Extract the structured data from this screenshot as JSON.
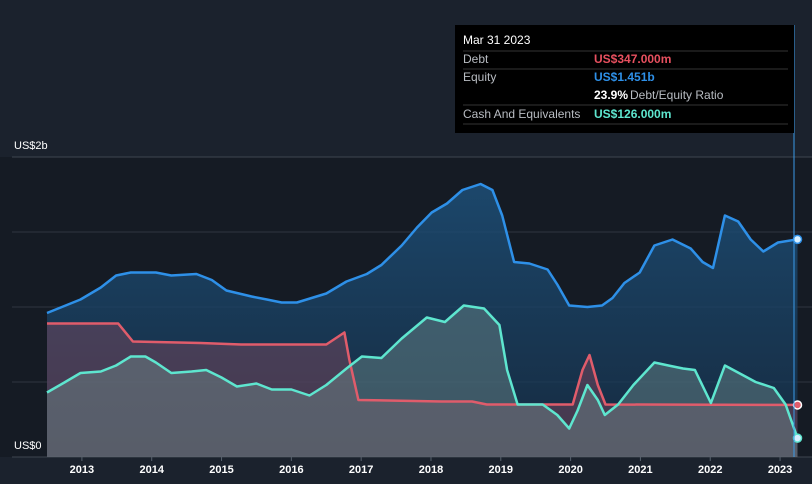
{
  "chart_data": {
    "type": "area",
    "xlim": [
      2012.5,
      2023.3
    ],
    "xticks": [
      2013,
      2014,
      2015,
      2016,
      2017,
      2018,
      2019,
      2020,
      2021,
      2022,
      2023
    ],
    "ylim": [
      0,
      2
    ],
    "yticks": [
      {
        "value": 0,
        "label": "US$0"
      },
      {
        "value": 2,
        "label": "US$2b"
      }
    ],
    "minor_gridlines": [
      0.5,
      1,
      1.5
    ],
    "grid": true,
    "series": [
      {
        "name": "Equity",
        "color": "#2e90e8",
        "x": [
          2012.5,
          2012.98,
          2013.27,
          2013.49,
          2013.7,
          2014.06,
          2014.28,
          2014.64,
          2014.86,
          2015.07,
          2015.43,
          2015.65,
          2015.86,
          2016.08,
          2016.29,
          2016.5,
          2016.79,
          2017.08,
          2017.29,
          2017.58,
          2017.8,
          2018.01,
          2018.23,
          2018.45,
          2018.71,
          2018.88,
          2019.02,
          2019.19,
          2019.41,
          2019.67,
          2019.81,
          2019.98,
          2020.24,
          2020.45,
          2020.6,
          2020.77,
          2020.99,
          2021.2,
          2021.46,
          2021.72,
          2021.89,
          2022.04,
          2022.21,
          2022.4,
          2022.58,
          2022.76,
          2022.97,
          2023.25
        ],
        "values": [
          0.96,
          1.05,
          1.13,
          1.21,
          1.23,
          1.23,
          1.21,
          1.22,
          1.18,
          1.11,
          1.07,
          1.05,
          1.03,
          1.03,
          1.06,
          1.09,
          1.17,
          1.22,
          1.28,
          1.41,
          1.53,
          1.63,
          1.69,
          1.78,
          1.82,
          1.78,
          1.61,
          1.3,
          1.29,
          1.25,
          1.15,
          1.01,
          1.0,
          1.01,
          1.06,
          1.16,
          1.23,
          1.41,
          1.45,
          1.39,
          1.3,
          1.26,
          1.61,
          1.57,
          1.45,
          1.37,
          1.43,
          1.451
        ]
      },
      {
        "name": "Debt",
        "color": "#e05c6b",
        "x": [
          2012.5,
          2012.83,
          2013.52,
          2013.73,
          2014.7,
          2015.28,
          2016.5,
          2016.76,
          2016.83,
          2016.96,
          2018.15,
          2018.59,
          2018.8,
          2020.03,
          2020.17,
          2020.27,
          2020.39,
          2020.5,
          2023.25
        ],
        "values": [
          0.89,
          0.89,
          0.89,
          0.77,
          0.76,
          0.75,
          0.75,
          0.83,
          0.65,
          0.38,
          0.37,
          0.37,
          0.35,
          0.35,
          0.58,
          0.68,
          0.48,
          0.35,
          0.347
        ]
      },
      {
        "name": "Cash And Equivalents",
        "color": "#5ee6cf",
        "x": [
          2012.5,
          2012.76,
          2012.98,
          2013.27,
          2013.49,
          2013.7,
          2013.91,
          2014.06,
          2014.28,
          2014.57,
          2014.78,
          2015.0,
          2015.22,
          2015.5,
          2015.72,
          2016.0,
          2016.26,
          2016.5,
          2016.79,
          2017.01,
          2017.29,
          2017.58,
          2017.94,
          2018.2,
          2018.47,
          2018.76,
          2018.98,
          2019.09,
          2019.24,
          2019.6,
          2019.81,
          2019.98,
          2020.1,
          2020.24,
          2020.39,
          2020.49,
          2020.68,
          2020.9,
          2021.2,
          2021.4,
          2021.61,
          2021.78,
          2022.01,
          2022.21,
          2022.45,
          2022.65,
          2022.91,
          2023.08,
          2023.25
        ],
        "values": [
          0.43,
          0.5,
          0.56,
          0.57,
          0.61,
          0.67,
          0.67,
          0.63,
          0.56,
          0.57,
          0.58,
          0.53,
          0.47,
          0.49,
          0.45,
          0.45,
          0.41,
          0.48,
          0.59,
          0.67,
          0.66,
          0.79,
          0.93,
          0.9,
          1.01,
          0.99,
          0.88,
          0.58,
          0.35,
          0.35,
          0.28,
          0.19,
          0.31,
          0.48,
          0.38,
          0.28,
          0.35,
          0.48,
          0.63,
          0.61,
          0.59,
          0.58,
          0.36,
          0.61,
          0.55,
          0.5,
          0.46,
          0.35,
          0.126
        ]
      }
    ],
    "tooltip": {
      "date": "Mar 31 2023",
      "debt_label": "Debt",
      "debt_value": "US$347.000m",
      "equity_label": "Equity",
      "equity_value": "US$1.451b",
      "ratio_value": "23.9%",
      "ratio_label": "Debt/Equity Ratio",
      "cash_label": "Cash And Equivalents",
      "cash_value": "US$126.000m"
    }
  }
}
